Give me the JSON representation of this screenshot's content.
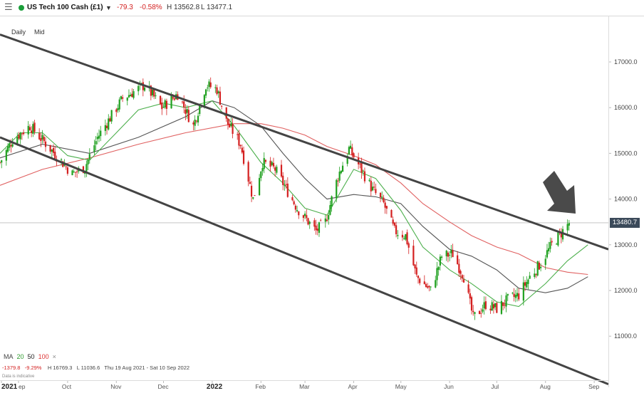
{
  "header": {
    "menu_icon": "menu-icon",
    "instrument": "US Tech 100 Cash (£1)",
    "dropdown_icon": "chevron-down-icon",
    "change": "-79.3",
    "change_pct": "-0.58%",
    "high": "H 13562.8",
    "low": "L 13477.1",
    "status_color": "#1a9e3a",
    "negative_color": "#d31f1f"
  },
  "toolbar": {
    "timeframe": "Daily",
    "price_type": "Mid"
  },
  "footer": {
    "ma_label": "MA",
    "ma_20": "20",
    "ma_50": "50",
    "ma_100": "100",
    "close_icon": "×",
    "change_abs": "-1379.8",
    "change_pct": "-9.29%",
    "high": "H 16769.3",
    "low": "L 11036.6",
    "range": "Thu 19 Aug 2021 - Sat 10 Sep 2022",
    "disclaimer": "Data is indicative"
  },
  "current_price_label": "13480.7",
  "annotation_arrow_icon": "arrow-down-right-icon",
  "chart_data": {
    "type": "candlestick",
    "x_tick_labels": [
      "2021",
      "ep",
      "Oct",
      "Nov",
      "Dec",
      "2022",
      "Feb",
      "Mar",
      "Apr",
      "May",
      "Jun",
      "Jul",
      "Aug",
      "Sep"
    ],
    "y_tick_labels": [
      "11000.0",
      "12000.0",
      "13000.0",
      "14000.0",
      "15000.0",
      "16000.0",
      "17000.0"
    ],
    "ylim": [
      10000,
      17800
    ],
    "current_price": 13480.7,
    "colors": {
      "up": "#1fa01f",
      "down": "#d42020",
      "ma20": "#4caf4c",
      "ma50": "#555555",
      "ma100": "#e06060",
      "trendline": "#444444"
    },
    "channel_upper": [
      [
        "2021-08-19",
        17600
      ],
      [
        "2022-09-10",
        12900
      ]
    ],
    "channel_lower": [
      [
        "2021-08-19",
        15350
      ],
      [
        "2022-09-10",
        9950
      ]
    ],
    "ma20": [
      [
        "2021-08-19",
        15000
      ],
      [
        "2021-09-01",
        15450
      ],
      [
        "2021-09-15",
        15450
      ],
      [
        "2021-10-01",
        14950
      ],
      [
        "2021-10-15",
        14850
      ],
      [
        "2021-11-01",
        15450
      ],
      [
        "2021-11-15",
        15950
      ],
      [
        "2021-12-01",
        16100
      ],
      [
        "2021-12-15",
        16000
      ],
      [
        "2022-01-01",
        16150
      ],
      [
        "2022-01-15",
        15600
      ],
      [
        "2022-02-01",
        14800
      ],
      [
        "2022-02-15",
        14350
      ],
      [
        "2022-03-01",
        13800
      ],
      [
        "2022-03-15",
        13650
      ],
      [
        "2022-04-01",
        14650
      ],
      [
        "2022-04-15",
        14450
      ],
      [
        "2022-05-01",
        13750
      ],
      [
        "2022-05-15",
        12950
      ],
      [
        "2022-06-01",
        12450
      ],
      [
        "2022-06-15",
        12150
      ],
      [
        "2022-07-01",
        11750
      ],
      [
        "2022-07-15",
        11650
      ],
      [
        "2022-08-01",
        12150
      ],
      [
        "2022-08-15",
        12650
      ],
      [
        "2022-08-28",
        13000
      ]
    ],
    "ma50": [
      [
        "2021-08-19",
        14900
      ],
      [
        "2021-09-15",
        15200
      ],
      [
        "2021-10-15",
        15000
      ],
      [
        "2021-11-15",
        15350
      ],
      [
        "2021-12-15",
        15800
      ],
      [
        "2022-01-01",
        16150
      ],
      [
        "2022-01-15",
        16000
      ],
      [
        "2022-02-01",
        15600
      ],
      [
        "2022-02-15",
        15000
      ],
      [
        "2022-03-01",
        14450
      ],
      [
        "2022-03-15",
        14000
      ],
      [
        "2022-04-01",
        14100
      ],
      [
        "2022-04-15",
        14050
      ],
      [
        "2022-05-01",
        13900
      ],
      [
        "2022-05-15",
        13400
      ],
      [
        "2022-06-01",
        12900
      ],
      [
        "2022-06-15",
        12750
      ],
      [
        "2022-07-01",
        12450
      ],
      [
        "2022-07-15",
        12050
      ],
      [
        "2022-08-01",
        11950
      ],
      [
        "2022-08-15",
        12050
      ],
      [
        "2022-08-28",
        12300
      ]
    ],
    "ma100": [
      [
        "2021-08-19",
        14300
      ],
      [
        "2021-09-15",
        14650
      ],
      [
        "2021-10-15",
        14900
      ],
      [
        "2021-11-15",
        15200
      ],
      [
        "2021-12-15",
        15450
      ],
      [
        "2022-01-15",
        15650
      ],
      [
        "2022-02-01",
        15650
      ],
      [
        "2022-02-15",
        15550
      ],
      [
        "2022-03-01",
        15400
      ],
      [
        "2022-03-15",
        15150
      ],
      [
        "2022-04-01",
        14950
      ],
      [
        "2022-04-15",
        14750
      ],
      [
        "2022-05-01",
        14350
      ],
      [
        "2022-05-15",
        13900
      ],
      [
        "2022-06-01",
        13500
      ],
      [
        "2022-06-15",
        13200
      ],
      [
        "2022-07-01",
        12950
      ],
      [
        "2022-07-15",
        12800
      ],
      [
        "2022-08-01",
        12500
      ],
      [
        "2022-08-15",
        12400
      ],
      [
        "2022-08-28",
        12350
      ]
    ],
    "close_path": [
      [
        "2021-08-19",
        14800
      ],
      [
        "2021-08-27",
        15300
      ],
      [
        "2021-09-07",
        15600
      ],
      [
        "2021-09-20",
        15100
      ],
      [
        "2021-10-04",
        14550
      ],
      [
        "2021-10-12",
        14700
      ],
      [
        "2021-10-20",
        15350
      ],
      [
        "2021-11-05",
        16200
      ],
      [
        "2021-11-19",
        16500
      ],
      [
        "2021-11-30",
        16000
      ],
      [
        "2021-12-10",
        16300
      ],
      [
        "2021-12-20",
        15600
      ],
      [
        "2021-12-28",
        16500
      ],
      [
        "2022-01-04",
        16400
      ],
      [
        "2022-01-10",
        15700
      ],
      [
        "2022-01-19",
        15200
      ],
      [
        "2022-01-27",
        14000
      ],
      [
        "2022-02-02",
        14800
      ],
      [
        "2022-02-10",
        14650
      ],
      [
        "2022-02-24",
        13800
      ],
      [
        "2022-03-08",
        13300
      ],
      [
        "2022-03-14",
        13500
      ],
      [
        "2022-03-22",
        14500
      ],
      [
        "2022-03-29",
        15100
      ],
      [
        "2022-04-05",
        14700
      ],
      [
        "2022-04-13",
        14200
      ],
      [
        "2022-04-20",
        13900
      ],
      [
        "2022-04-27",
        13300
      ],
      [
        "2022-05-04",
        13200
      ],
      [
        "2022-05-11",
        12300
      ],
      [
        "2022-05-20",
        12000
      ],
      [
        "2022-05-27",
        12750
      ],
      [
        "2022-06-03",
        12800
      ],
      [
        "2022-06-10",
        12300
      ],
      [
        "2022-06-16",
        11400
      ],
      [
        "2022-06-24",
        11700
      ],
      [
        "2022-07-01",
        11600
      ],
      [
        "2022-07-08",
        11800
      ],
      [
        "2022-07-15",
        11900
      ],
      [
        "2022-07-22",
        12300
      ],
      [
        "2022-07-29",
        12600
      ],
      [
        "2022-08-05",
        13000
      ],
      [
        "2022-08-12",
        13300
      ],
      [
        "2022-08-16",
        13480
      ]
    ]
  }
}
